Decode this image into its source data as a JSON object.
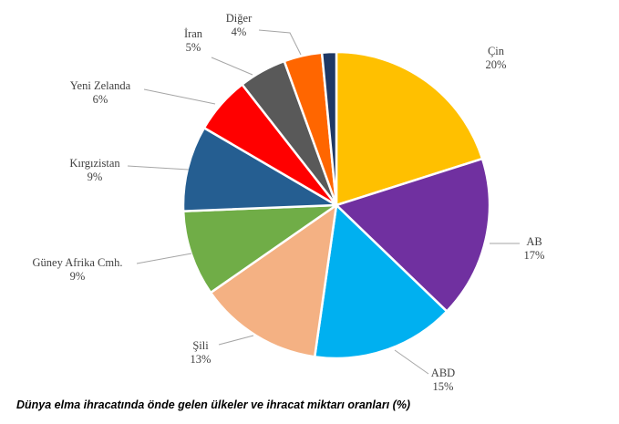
{
  "chart_data": {
    "type": "pie",
    "slices": [
      {
        "label": "Çin",
        "value": 20,
        "value_label": "20%",
        "color": "#FFC000"
      },
      {
        "label": "AB",
        "value": 17,
        "value_label": "17%",
        "color": "#7030A0"
      },
      {
        "label": "ABD",
        "value": 15,
        "value_label": "15%",
        "color": "#00B0F0"
      },
      {
        "label": "Şili",
        "value": 13,
        "value_label": "13%",
        "color": "#F4B183"
      },
      {
        "label": "Güney Afrika Cmh.",
        "value": 9,
        "value_label": "9%",
        "color": "#70AD47"
      },
      {
        "label": "Kırgızistan",
        "value": 9,
        "value_label": "9%",
        "color": "#255E91"
      },
      {
        "label": "Yeni Zelanda",
        "value": 6,
        "value_label": "6%",
        "color": "#FF0000"
      },
      {
        "label": "İran",
        "value": 5,
        "value_label": "5%",
        "color": "#595959"
      },
      {
        "label": "Diğer",
        "value": 4,
        "value_label": "4%",
        "color": "#FF6600"
      },
      {
        "label": "",
        "value": 1.5,
        "value_label": "",
        "color": "#1F3864"
      }
    ]
  },
  "caption": "Dünya elma ihracatında önde gelen ülkeler ve ihracat miktarı oranları (%)"
}
